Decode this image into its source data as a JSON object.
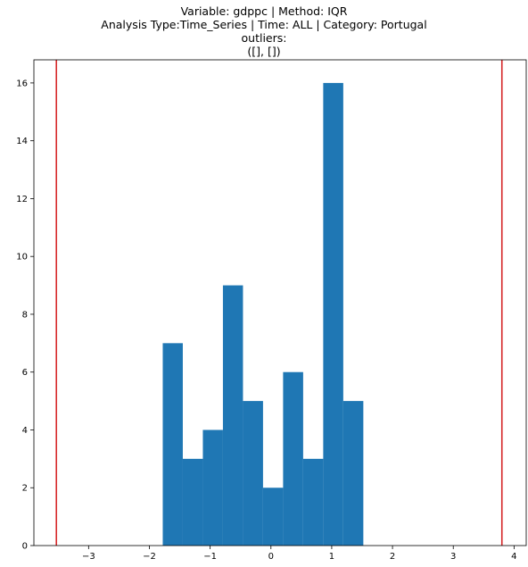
{
  "chart_data": {
    "type": "bar",
    "title_lines": [
      "Variable: gdppc | Method: IQR",
      "Analysis Type:Time_Series | Time: ALL | Category: Portugal",
      "outliers:",
      "([], [])"
    ],
    "bins": [
      {
        "x0": -1.78,
        "x1": -1.45,
        "count": 7
      },
      {
        "x0": -1.45,
        "x1": -1.12,
        "count": 3
      },
      {
        "x0": -1.12,
        "x1": -0.79,
        "count": 4
      },
      {
        "x0": -0.79,
        "x1": -0.46,
        "count": 9
      },
      {
        "x0": -0.46,
        "x1": -0.13,
        "count": 5
      },
      {
        "x0": -0.13,
        "x1": 0.2,
        "count": 2
      },
      {
        "x0": 0.2,
        "x1": 0.53,
        "count": 6
      },
      {
        "x0": 0.53,
        "x1": 0.86,
        "count": 3
      },
      {
        "x0": 0.86,
        "x1": 1.19,
        "count": 16
      },
      {
        "x0": 1.19,
        "x1": 1.52,
        "count": 5
      }
    ],
    "vlines": [
      -3.53,
      3.8
    ],
    "xlim": [
      -3.9,
      4.2
    ],
    "ylim": [
      0,
      16.8
    ],
    "xticks": [
      -3,
      -2,
      -1,
      0,
      1,
      2,
      3,
      4
    ],
    "xtick_labels": [
      "−3",
      "−2",
      "−1",
      "0",
      "1",
      "2",
      "3",
      "4"
    ],
    "yticks": [
      0,
      2,
      4,
      6,
      8,
      10,
      12,
      14,
      16
    ],
    "ytick_labels": [
      "0",
      "2",
      "4",
      "6",
      "8",
      "10",
      "12",
      "14",
      "16"
    ],
    "bar_color": "#1f77b4",
    "vline_color": "#d62728",
    "grid": false,
    "legend": "none"
  }
}
